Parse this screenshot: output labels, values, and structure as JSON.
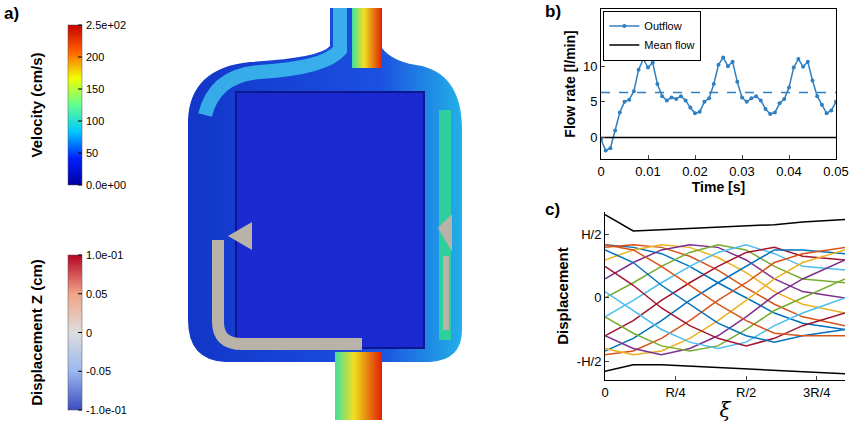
{
  "chart_data": [
    {
      "type": "colorbar_render",
      "label": "a)",
      "colorbars": [
        {
          "title": "Velocity (cm/s)",
          "range": [
            0,
            250
          ],
          "ticks": [
            {
              "value": 0,
              "label": "0.0e+00"
            },
            50,
            100,
            150,
            200,
            {
              "value": 250,
              "label": "2.5e+02"
            }
          ],
          "colors": [
            "#0000a0",
            "#0020ff",
            "#00c8ff",
            "#60ff90",
            "#f0ff00",
            "#ff6000",
            "#c80000"
          ]
        },
        {
          "title": "Displacement Z (cm)",
          "range": [
            -0.1,
            0.1
          ],
          "ticks": [
            {
              "value": -0.1,
              "label": "-1.0e-01"
            },
            -0.05,
            0,
            0.05,
            {
              "value": 0.1,
              "label": "1.0e-01"
            }
          ],
          "colors": [
            "#3b4cc0",
            "#9ab8f0",
            "#dddddd",
            "#f2a385",
            "#b40426"
          ]
        }
      ]
    },
    {
      "type": "line",
      "label": "b)",
      "x_label": "Time [s]",
      "y_label": "Flow rate [l/min]",
      "x": [
        0,
        0.001,
        0.002,
        0.003,
        0.004,
        0.005,
        0.006,
        0.007,
        0.008,
        0.009,
        0.01,
        0.011,
        0.012,
        0.013,
        0.014,
        0.015,
        0.016,
        0.017,
        0.018,
        0.019,
        0.02,
        0.021,
        0.022,
        0.023,
        0.024,
        0.025,
        0.026,
        0.027,
        0.028,
        0.029,
        0.03,
        0.031,
        0.032,
        0.033,
        0.034,
        0.035,
        0.036,
        0.037,
        0.038,
        0.039,
        0.04,
        0.041,
        0.042,
        0.043,
        0.044,
        0.045,
        0.046,
        0.047,
        0.048,
        0.049,
        0.05
      ],
      "series": [
        {
          "name": "Outflow",
          "color": "#2f7fc1",
          "marker": "circle",
          "line_style": "solid",
          "values": [
            -0.3,
            -1.8,
            -1.5,
            1.0,
            3.5,
            5.0,
            5.3,
            6.5,
            9.5,
            11.0,
            9.8,
            10.5,
            7.5,
            5.8,
            5.2,
            5.6,
            5.4,
            5.8,
            5.2,
            4.2,
            3.4,
            3.6,
            5.0,
            5.5,
            7.5,
            10.2,
            11.2,
            10.0,
            10.6,
            7.8,
            5.6,
            5.0,
            5.5,
            5.8,
            5.2,
            4.0,
            3.3,
            3.5,
            4.8,
            5.4,
            7.0,
            9.8,
            11.0,
            9.9,
            10.6,
            8.0,
            5.8,
            4.6,
            3.4,
            3.8,
            5.0
          ]
        },
        {
          "name": "Mean flow",
          "color": "#000000",
          "line_style": "solid",
          "values": [
            0,
            0,
            0,
            0,
            0,
            0,
            0,
            0,
            0,
            0,
            0,
            0,
            0,
            0,
            0,
            0,
            0,
            0,
            0,
            0,
            0,
            0,
            0,
            0,
            0,
            0,
            0,
            0,
            0,
            0,
            0,
            0,
            0,
            0,
            0,
            0,
            0,
            0,
            0,
            0,
            0,
            0,
            0,
            0,
            0,
            0,
            0,
            0,
            0,
            0,
            0
          ]
        }
      ],
      "hline": {
        "value": 6.3,
        "color": "#2f7fc1",
        "line_style": "dashed"
      },
      "xlim": [
        0,
        0.05
      ],
      "xticks": [
        0,
        0.01,
        0.02,
        0.03,
        0.04,
        0.05
      ],
      "ylim": [
        -3,
        18
      ],
      "yticks": [
        0,
        5,
        10
      ],
      "grid": false,
      "legend": "upper left"
    },
    {
      "type": "line",
      "label": "c)",
      "x_label": "ξ",
      "y_label": "Displacement",
      "x": [
        0,
        0.1,
        0.2,
        0.3,
        0.4,
        0.5,
        0.6,
        0.7,
        0.85
      ],
      "series": [
        {
          "color": "#0072bd",
          "values": [
            0.42,
            0.4,
            0.35,
            0.25,
            0.12,
            0.0,
            -0.12,
            -0.2,
            -0.25
          ]
        },
        {
          "color": "#d95319",
          "values": [
            0.4,
            0.42,
            0.4,
            0.33,
            0.22,
            0.08,
            -0.05,
            -0.15,
            -0.22
          ]
        },
        {
          "color": "#edb120",
          "values": [
            0.3,
            0.38,
            0.42,
            0.4,
            0.32,
            0.2,
            0.05,
            -0.05,
            -0.12
          ]
        },
        {
          "color": "#7e2f8e",
          "values": [
            0.15,
            0.28,
            0.38,
            0.42,
            0.4,
            0.3,
            0.15,
            0.05,
            0.0
          ]
        },
        {
          "color": "#77ac30",
          "values": [
            0.0,
            0.12,
            0.25,
            0.36,
            0.42,
            0.38,
            0.25,
            0.15,
            0.12
          ]
        },
        {
          "color": "#4dbeee",
          "values": [
            -0.15,
            -0.02,
            0.12,
            0.25,
            0.36,
            0.42,
            0.35,
            0.25,
            0.22
          ]
        },
        {
          "color": "#a2142f",
          "values": [
            -0.3,
            -0.18,
            -0.02,
            0.12,
            0.25,
            0.36,
            0.4,
            0.33,
            0.3
          ]
        },
        {
          "color": "#0072bd",
          "values": [
            -0.42,
            -0.32,
            -0.18,
            -0.02,
            0.12,
            0.25,
            0.38,
            0.38,
            0.35
          ]
        },
        {
          "color": "#d95319",
          "values": [
            -0.45,
            -0.42,
            -0.32,
            -0.18,
            -0.02,
            0.12,
            0.28,
            0.35,
            0.4
          ]
        },
        {
          "color": "#edb120",
          "values": [
            -0.4,
            -0.45,
            -0.42,
            -0.32,
            -0.18,
            -0.02,
            0.15,
            0.28,
            0.38
          ]
        },
        {
          "color": "#7e2f8e",
          "values": [
            -0.3,
            -0.4,
            -0.45,
            -0.4,
            -0.3,
            -0.15,
            0.02,
            0.15,
            0.3
          ]
        },
        {
          "color": "#77ac30",
          "values": [
            -0.15,
            -0.28,
            -0.38,
            -0.42,
            -0.38,
            -0.25,
            -0.1,
            0.0,
            0.15
          ]
        },
        {
          "color": "#4dbeee",
          "values": [
            0.05,
            -0.1,
            -0.25,
            -0.35,
            -0.4,
            -0.35,
            -0.22,
            -0.12,
            0.0
          ]
        },
        {
          "color": "#a2142f",
          "values": [
            0.25,
            0.1,
            -0.08,
            -0.22,
            -0.32,
            -0.38,
            -0.32,
            -0.22,
            -0.12
          ]
        },
        {
          "color": "#0072bd",
          "values": [
            0.38,
            0.28,
            0.1,
            -0.05,
            -0.2,
            -0.3,
            -0.35,
            -0.3,
            -0.25
          ]
        },
        {
          "color": "#d95319",
          "values": [
            0.42,
            0.38,
            0.25,
            0.1,
            -0.05,
            -0.18,
            -0.28,
            -0.3,
            -0.3
          ]
        },
        {
          "color": "#000000",
          "values": [
            0.66,
            0.53,
            0.54,
            0.55,
            0.56,
            0.57,
            0.58,
            0.6,
            0.62
          ]
        },
        {
          "color": "#000000",
          "values": [
            -0.58,
            -0.53,
            -0.53,
            -0.54,
            -0.55,
            -0.56,
            -0.57,
            -0.58,
            -0.6
          ]
        }
      ],
      "xlim": [
        0,
        0.85
      ],
      "xticks": [
        0,
        {
          "value": 0.25,
          "label": "R/4"
        },
        {
          "value": 0.5,
          "label": "R/2"
        },
        {
          "value": 0.75,
          "label": "3R/4"
        }
      ],
      "ylim": [
        -0.65,
        0.68
      ],
      "yticks": [
        {
          "value": -0.5,
          "label": "-H/2"
        },
        0,
        {
          "value": 0.5,
          "label": "H/2"
        }
      ],
      "grid": false
    }
  ]
}
